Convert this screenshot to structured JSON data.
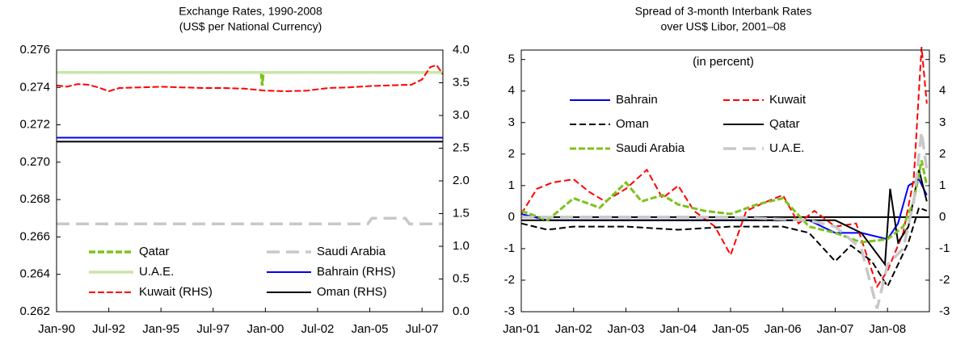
{
  "chart_data": [
    {
      "type": "line",
      "title": "Exchange Rates, 1990-2008",
      "subtitle": "(US$ per National Currency)",
      "xlim": [
        1990,
        2008.5
      ],
      "xticks": [
        {
          "value": 1990,
          "label": "Jan-90"
        },
        {
          "value": 1992.5,
          "label": "Jul-92"
        },
        {
          "value": 1995,
          "label": "Jan-95"
        },
        {
          "value": 1997.5,
          "label": "Jul-97"
        },
        {
          "value": 2000,
          "label": "Jan-00"
        },
        {
          "value": 2002.5,
          "label": "Jul-02"
        },
        {
          "value": 2005,
          "label": "Jan-05"
        },
        {
          "value": 2007.5,
          "label": "Jul-07"
        }
      ],
      "ylim": [
        0.262,
        0.276
      ],
      "yticks": [
        0.262,
        0.264,
        0.266,
        0.268,
        {
          "value": 0.27,
          "label": "0.270"
        },
        0.272,
        0.274,
        0.276
      ],
      "y2lim": [
        0,
        4
      ],
      "y2ticks": [
        {
          "value": 0,
          "label": "0.0"
        },
        0.5,
        {
          "value": 1,
          "label": "1.0"
        },
        1.5,
        {
          "value": 2,
          "label": "2.0"
        },
        2.5,
        {
          "value": 3,
          "label": "3.0"
        },
        3.5,
        {
          "value": 4,
          "label": "4.0"
        }
      ],
      "series": [
        {
          "name": "Qatar",
          "color": "#7dc21e",
          "dash": "8,3",
          "width": 3.5,
          "x": [
            1990,
            1999.8,
            1999.85,
            1999.9,
            2008.5
          ],
          "values": [
            0.2748,
            0.2748,
            0.2741,
            0.2748,
            0.2748
          ]
        },
        {
          "name": "Saudi Arabia",
          "color": "#c8c8c8",
          "dash": "16,8",
          "width": 3.5,
          "x": [
            1990,
            2004.9,
            2005.1,
            2006.7,
            2006.9,
            2008.5
          ],
          "values": [
            0.2667,
            0.2667,
            0.267,
            0.267,
            0.2667,
            0.2667
          ]
        },
        {
          "name": "U.A.E.",
          "color": "#c9e6a8",
          "dash": "",
          "width": 3.5,
          "x": [
            1990,
            2008.5
          ],
          "values": [
            0.2748,
            0.2748
          ]
        },
        {
          "name": "Bahrain (RHS)",
          "color": "#0000ff",
          "dash": "",
          "width": 2,
          "axis": "y2",
          "x": [
            1990,
            2008.5
          ],
          "values": [
            2.66,
            2.66
          ]
        },
        {
          "name": "Kuwait (RHS)",
          "color": "#ff0000",
          "dash": "8,3",
          "width": 2,
          "axis": "y2",
          "x": [
            1990,
            1990.5,
            1991,
            1991.5,
            1992,
            1992.5,
            1993,
            1994,
            1995,
            1996,
            1997,
            1998,
            1999,
            2000,
            2001,
            2002,
            2003,
            2004,
            2005,
            2006,
            2007,
            2007.5,
            2007.9,
            2008.2,
            2008.5
          ],
          "values": [
            3.46,
            3.44,
            3.48,
            3.47,
            3.43,
            3.37,
            3.42,
            3.43,
            3.44,
            3.43,
            3.42,
            3.42,
            3.41,
            3.38,
            3.37,
            3.38,
            3.42,
            3.43,
            3.45,
            3.46,
            3.47,
            3.55,
            3.74,
            3.77,
            3.63
          ]
        },
        {
          "name": "Oman (RHS)",
          "color": "#000000",
          "dash": "",
          "width": 2,
          "axis": "y2",
          "x": [
            1990,
            2008.5
          ],
          "values": [
            2.6,
            2.6
          ]
        }
      ]
    },
    {
      "type": "line",
      "title": "Spread of 3-month Interbank Rates",
      "subtitle": "over US$ Libor, 2001–08",
      "annotation": "(in percent)",
      "xlim": [
        2001,
        2008.8
      ],
      "xticks": [
        {
          "value": 2001,
          "label": "Jan-01"
        },
        {
          "value": 2002,
          "label": "Jan-02"
        },
        {
          "value": 2003,
          "label": "Jan-03"
        },
        {
          "value": 2004,
          "label": "Jan-04"
        },
        {
          "value": 2005,
          "label": "Jan-05"
        },
        {
          "value": 2006,
          "label": "Jan-06"
        },
        {
          "value": 2007,
          "label": "Jan-07"
        },
        {
          "value": 2008,
          "label": "Jan-08"
        }
      ],
      "ylim": [
        -3,
        5.3
      ],
      "yticks": [
        -3,
        -2,
        -1,
        0,
        1,
        2,
        3,
        4,
        5
      ],
      "y2lim": [
        -3,
        5.3
      ],
      "y2ticks": [
        -3,
        -2,
        -1,
        0,
        1,
        2,
        3,
        4,
        5
      ],
      "series": [
        {
          "name": "Bahrain",
          "color": "#0000ff",
          "dash": "",
          "width": 2,
          "x": [
            2001,
            2001.5,
            2002,
            2003,
            2004,
            2005,
            2006,
            2006.5,
            2007,
            2007.5,
            2008,
            2008.2,
            2008.4,
            2008.6,
            2008.75
          ],
          "values": [
            0.1,
            -0.1,
            -0.1,
            -0.1,
            -0.1,
            -0.1,
            -0.1,
            -0.1,
            -0.5,
            -0.5,
            -0.7,
            -0.2,
            1,
            1.2,
            0.7
          ]
        },
        {
          "name": "Kuwait",
          "color": "#ff0000",
          "dash": "8,4",
          "width": 2,
          "x": [
            2001,
            2001.3,
            2001.6,
            2002,
            2002.3,
            2002.6,
            2003,
            2003.4,
            2003.7,
            2004,
            2004.3,
            2004.7,
            2005,
            2005.3,
            2005.7,
            2006,
            2006.3,
            2006.6,
            2007,
            2007.4,
            2007.8,
            2008,
            2008.3,
            2008.5,
            2008.65,
            2008.75
          ],
          "values": [
            0.1,
            0.9,
            1.1,
            1.2,
            0.8,
            0.5,
            0.9,
            1.5,
            0.6,
            1,
            0.2,
            -0.3,
            -1.2,
            0.2,
            0.5,
            0.7,
            -0.2,
            0.2,
            -0.3,
            -0.2,
            -2.2,
            -1.7,
            -0.5,
            1.2,
            5.4,
            3.6
          ]
        },
        {
          "name": "Oman",
          "color": "#000000",
          "dash": "8,4",
          "width": 2,
          "x": [
            2001,
            2001.5,
            2002,
            2003,
            2004,
            2005,
            2006,
            2006.5,
            2007,
            2007.3,
            2007.7,
            2008,
            2008.2,
            2008.4,
            2008.6,
            2008.75
          ],
          "values": [
            -0.2,
            -0.4,
            -0.3,
            -0.3,
            -0.4,
            -0.3,
            -0.3,
            -0.5,
            -1.4,
            -0.9,
            -1.4,
            -2.2,
            -1.5,
            -0.8,
            0.3,
            0.2
          ]
        },
        {
          "name": "Qatar",
          "color": "#000000",
          "dash": "",
          "width": 2,
          "x": [
            2001,
            2002,
            2003,
            2004,
            2005,
            2006,
            2007,
            2007.5,
            2007.95,
            2008.05,
            2008.2,
            2008.4,
            2008.6,
            2008.75
          ],
          "values": [
            -0.1,
            -0.1,
            -0.1,
            -0.1,
            -0.1,
            -0.1,
            -0.1,
            -0.5,
            -1.5,
            0.9,
            -0.8,
            -0.3,
            1.5,
            0.5
          ]
        },
        {
          "name": "Saudi Arabia",
          "color": "#7dc21e",
          "dash": "8,3",
          "width": 3,
          "x": [
            2001,
            2001.5,
            2002,
            2002.5,
            2003,
            2003.3,
            2003.7,
            2004,
            2004.5,
            2005,
            2005.5,
            2006,
            2006.5,
            2007,
            2007.5,
            2008,
            2008.3,
            2008.5,
            2008.65,
            2008.75
          ],
          "values": [
            0.2,
            -0.1,
            0.6,
            0.3,
            1.1,
            0.5,
            0.7,
            0.4,
            0.2,
            0.1,
            0.4,
            0.6,
            -0.3,
            -0.5,
            -0.8,
            -0.7,
            -0.3,
            0.5,
            1.8,
            1
          ]
        },
        {
          "name": "U.A.E.",
          "color": "#c8c8c8",
          "dash": "16,8",
          "width": 3.5,
          "x": [
            2001,
            2003,
            2005,
            2006.5,
            2007,
            2007.5,
            2007.8,
            2008,
            2008.3,
            2008.5,
            2008.65,
            2008.75
          ],
          "values": [
            0,
            0,
            0,
            -0.1,
            -0.3,
            -1,
            -2.9,
            -1.5,
            -1,
            0.5,
            2.7,
            1.5
          ]
        }
      ]
    }
  ]
}
